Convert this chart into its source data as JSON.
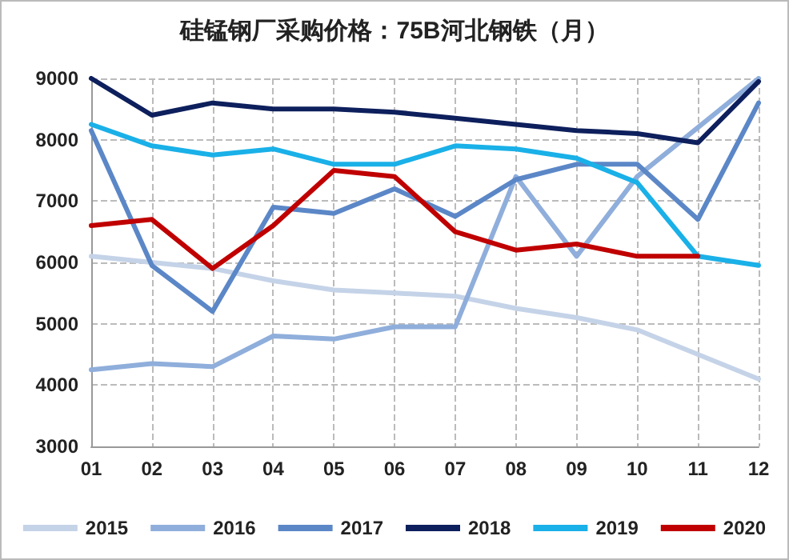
{
  "chart_data": {
    "type": "line",
    "title": "硅锰钢厂采购价格：75B河北钢铁（月）",
    "categories": [
      "01",
      "02",
      "03",
      "04",
      "05",
      "06",
      "07",
      "08",
      "09",
      "10",
      "11",
      "12"
    ],
    "series": [
      {
        "name": "2015",
        "color": "#c5d3e8",
        "values": [
          6100,
          6000,
          5900,
          5700,
          5550,
          5500,
          5450,
          5250,
          5100,
          4900,
          4500,
          4100
        ]
      },
      {
        "name": "2016",
        "color": "#8faedb",
        "values": [
          4250,
          4350,
          4300,
          4800,
          4750,
          4950,
          4950,
          7400,
          6100,
          7400,
          8200,
          9000
        ]
      },
      {
        "name": "2017",
        "color": "#5b87c7",
        "values": [
          8150,
          5950,
          5200,
          6900,
          6800,
          7200,
          6750,
          7350,
          7600,
          7600,
          6700,
          8600
        ]
      },
      {
        "name": "2018",
        "color": "#0d1f5c",
        "values": [
          9000,
          8400,
          8600,
          8500,
          8500,
          8450,
          8350,
          8250,
          8150,
          8100,
          7950,
          8950
        ]
      },
      {
        "name": "2019",
        "color": "#1ab0e8",
        "values": [
          8250,
          7900,
          7750,
          7850,
          7600,
          7600,
          7900,
          7850,
          7700,
          7300,
          6100,
          5950
        ]
      },
      {
        "name": "2020",
        "color": "#c00000",
        "values": [
          6600,
          6700,
          5900,
          6600,
          7500,
          7400,
          6500,
          6200,
          6300,
          6100,
          6100,
          null
        ]
      }
    ],
    "ylim": [
      3000,
      9000
    ],
    "yticks": [
      3000,
      4000,
      5000,
      6000,
      7000,
      8000,
      9000
    ],
    "grid": true,
    "legend": "bottom",
    "marker": "none",
    "line_style": "solid"
  }
}
